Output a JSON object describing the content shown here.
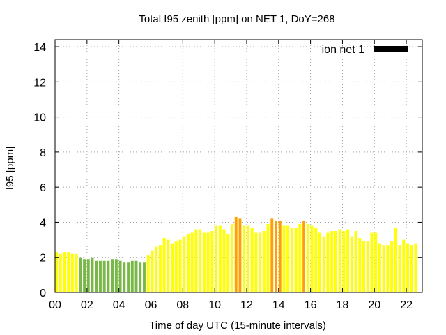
{
  "chart_data": {
    "type": "bar",
    "title": "Total I95 zenith [ppm] on NET 1, DoY=268",
    "xlabel": "Time of day UTC (15-minute intervals)",
    "ylabel": "I95 [ppm]",
    "xlim": [
      0,
      23.0
    ],
    "ylim": [
      0,
      14.4
    ],
    "x_ticks": [
      0,
      2,
      4,
      6,
      8,
      10,
      12,
      14,
      16,
      18,
      20,
      22
    ],
    "x_tick_labels": [
      "00",
      "02",
      "04",
      "06",
      "08",
      "10",
      "12",
      "14",
      "16",
      "18",
      "20",
      "22"
    ],
    "y_ticks": [
      0,
      2,
      4,
      6,
      8,
      10,
      12,
      14
    ],
    "y_tick_labels": [
      "0",
      "2",
      "4",
      "6",
      "8",
      "10",
      "12",
      "14"
    ],
    "grid": true,
    "legend": {
      "label": "ion net 1",
      "position": "top-right",
      "swatch_color": "#000000"
    },
    "bar_width_hours": 0.17,
    "bin_hours": 0.25,
    "color_thresholds": {
      "green_below": 2.1,
      "orange_from": 4.0
    },
    "colors": {
      "green": "#78b846",
      "yellow": "#ffff00",
      "orange": "#ffa000",
      "grid": "#a0a0a0",
      "axis": "#000000"
    },
    "values": [
      2.3,
      2.2,
      2.3,
      2.3,
      2.2,
      2.2,
      2.0,
      1.9,
      1.9,
      2.0,
      1.8,
      1.8,
      1.8,
      1.8,
      1.9,
      1.9,
      1.8,
      1.7,
      1.7,
      1.8,
      1.8,
      1.7,
      1.7,
      2.1,
      2.4,
      2.6,
      2.7,
      3.1,
      3.0,
      2.8,
      2.9,
      3.0,
      3.2,
      3.3,
      3.4,
      3.6,
      3.6,
      3.4,
      3.4,
      3.5,
      3.8,
      3.8,
      3.6,
      3.3,
      3.9,
      4.3,
      4.2,
      3.8,
      3.8,
      3.7,
      3.4,
      3.4,
      3.5,
      3.9,
      4.2,
      4.1,
      4.1,
      3.8,
      3.8,
      3.7,
      3.7,
      3.9,
      4.1,
      3.9,
      3.8,
      3.7,
      3.4,
      3.2,
      3.4,
      3.5,
      3.5,
      3.6,
      3.5,
      3.6,
      3.2,
      3.5,
      3.1,
      2.9,
      2.9,
      3.4,
      3.4,
      2.8,
      2.7,
      2.7,
      2.9,
      3.7,
      2.7,
      3.0,
      2.8,
      2.7,
      2.8
    ]
  }
}
